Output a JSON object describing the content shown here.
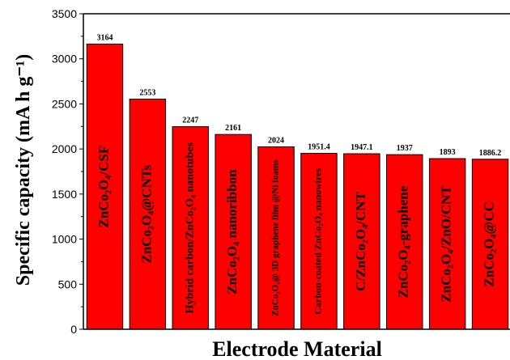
{
  "chart_data": {
    "type": "bar",
    "xlabel": "Electrode Material",
    "ylabel": "Specific capacity (mA h g⁻¹)",
    "ylim": [
      0,
      3500
    ],
    "yticks": [
      0,
      500,
      1000,
      1500,
      2000,
      2500,
      3000,
      3500
    ],
    "bar_color": "#ff0000",
    "grid": false,
    "categories": [
      "ZnCo₂O₄/CSF",
      "ZnCo₂O₄@CNTs",
      "Hybrid carbon/ZnCo₂O₄ nanotubes",
      "ZnCo₂O₄ nanoribbon",
      "ZnCo₂O₄@ 3D graphene film @Ni foams",
      "Carbon-coated ZnCo₂O₄ nanowires",
      "C/ZnCo₂O₄/CNT",
      "ZnCo₂O₄-graphene",
      "ZnCo₂O₄/ZnO/CNT",
      "ZnCo₂O₄@CC"
    ],
    "values": [
      3164,
      2553,
      2247,
      2161,
      2024,
      1951.4,
      1947.1,
      1937,
      1893,
      1886.2
    ],
    "value_labels": [
      "3164",
      "2553",
      "2247",
      "2161",
      "2024",
      "1951.4",
      "1947.1",
      "1937",
      "1893",
      "1886.2"
    ]
  }
}
